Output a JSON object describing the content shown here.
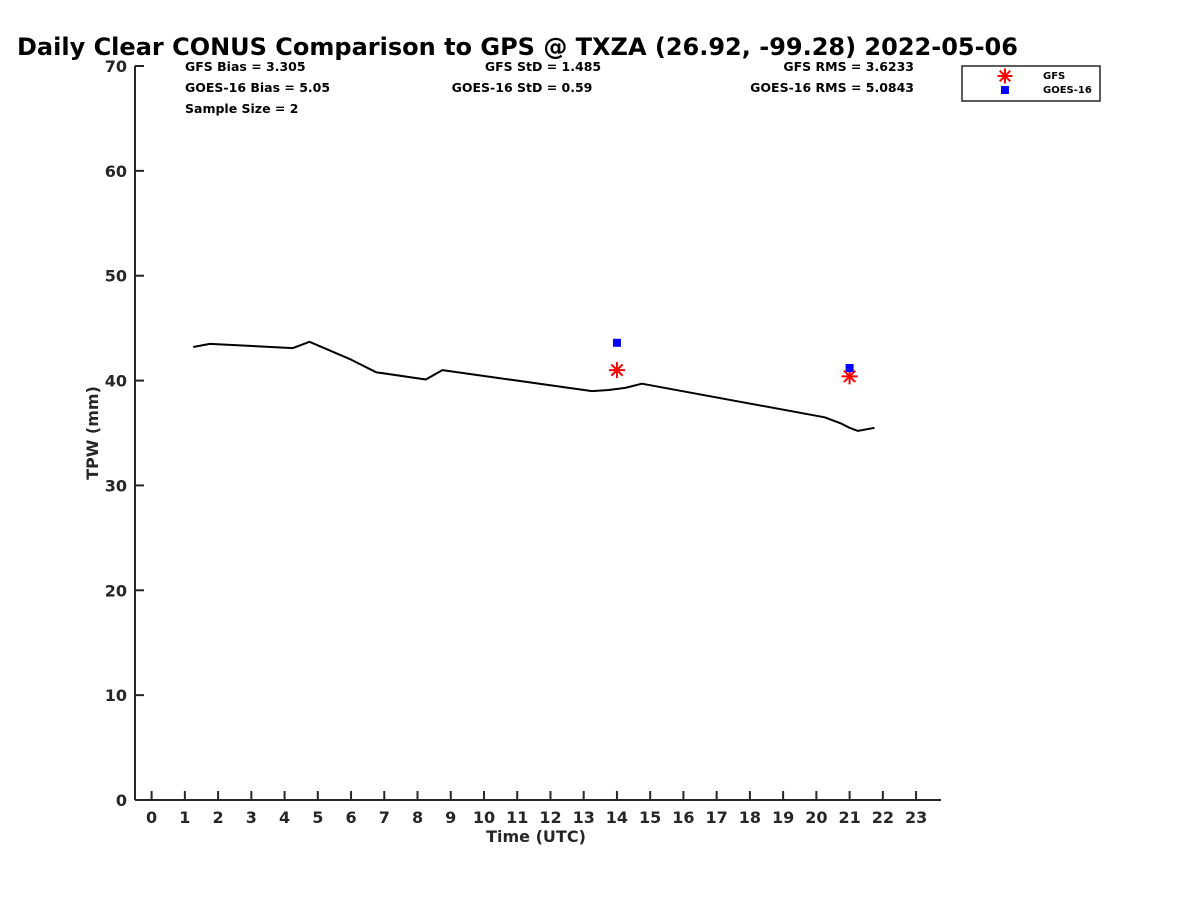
{
  "chart_data": {
    "type": "line",
    "title": "Daily Clear CONUS Comparison to GPS @ TXZA (26.92, -99.28) 2022-05-06",
    "xlabel": "Time (UTC)",
    "ylabel": "TPW (mm)",
    "xlim": [
      -0.5,
      23.75
    ],
    "ylim": [
      0,
      70
    ],
    "xticks": [
      "0",
      "1",
      "2",
      "3",
      "4",
      "5",
      "6",
      "7",
      "8",
      "9",
      "10",
      "11",
      "12",
      "13",
      "14",
      "15",
      "16",
      "17",
      "18",
      "19",
      "20",
      "21",
      "22",
      "23"
    ],
    "yticks": [
      "0",
      "10",
      "20",
      "30",
      "40",
      "50",
      "60",
      "70"
    ],
    "grid": false,
    "legend_position": "top-right",
    "series": [
      {
        "style": "line",
        "color": "#000000",
        "x": [
          1.25,
          1.75,
          4.25,
          4.75,
          6.0,
          6.75,
          8.25,
          8.75,
          13.25,
          13.75,
          14.25,
          14.75,
          20.25,
          20.75,
          21.0,
          21.25,
          21.75
        ],
        "y": [
          43.2,
          43.5,
          43.1,
          43.7,
          42.0,
          40.8,
          40.1,
          41.0,
          39.0,
          39.1,
          39.3,
          39.7,
          36.5,
          35.9,
          35.5,
          35.2,
          35.5
        ]
      },
      {
        "name": "GFS",
        "style": "scatter",
        "marker": "asterisk",
        "color": "#ff0000",
        "x": [
          14,
          21
        ],
        "y": [
          41.0,
          40.4
        ]
      },
      {
        "name": "GOES-16",
        "style": "scatter",
        "marker": "square",
        "color": "#0000ff",
        "x": [
          14,
          21
        ],
        "y": [
          43.6,
          41.2
        ]
      }
    ],
    "stats": {
      "gfs_bias": "GFS Bias = 3.305",
      "goes_bias": "GOES-16 Bias = 5.05",
      "sample_size": "Sample Size = 2",
      "gfs_std": "GFS StD = 1.485",
      "goes_std": "GOES-16 StD = 0.59",
      "gfs_rms": "GFS RMS = 3.6233",
      "goes_rms": "GOES-16 RMS = 5.0843"
    }
  }
}
